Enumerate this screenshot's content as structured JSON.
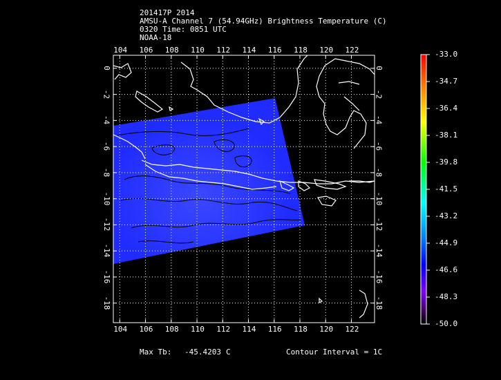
{
  "header": {
    "line1": "201417P 2014",
    "line2": "AMSU-A Channel 7 (54.94GHz) Brightness Temperature (C)",
    "line3": "0320 Time: 0851 UTC",
    "line4": "NOAA-18"
  },
  "map": {
    "lon_ticks": [
      "104",
      "106",
      "108",
      "110",
      "112",
      "114",
      "116",
      "118",
      "120",
      "122"
    ],
    "lat_ticks": [
      "0",
      "-2",
      "-4",
      "-6",
      "-8",
      "-10",
      "-12",
      "-14",
      "-16",
      "-18"
    ],
    "lon_range": [
      103.5,
      123.8
    ],
    "lat_range": [
      1.0,
      -19.5
    ],
    "swath_color": "#1f2bff",
    "swath_highlight_color": "#3a48ff",
    "coastline_color": "#ffffff",
    "contour_color": "#000000",
    "grid_color": "#ffffff"
  },
  "colorbar": {
    "labels": [
      "-33.0",
      "-34.7",
      "-36.4",
      "-38.1",
      "-39.8",
      "-41.5",
      "-43.2",
      "-44.9",
      "-46.6",
      "-48.3",
      "-50.0"
    ],
    "max": -33.0,
    "min": -50.0,
    "colors": [
      "#ff0000",
      "#ff8000",
      "#ffff00",
      "#00ff00",
      "#00ffff",
      "#0080ff",
      "#0000ff",
      "#8000ff",
      "#400060",
      "#000000"
    ]
  },
  "footer": {
    "max_label": "Max Tb:",
    "max_value": "-45.4203",
    "max_unit": "C",
    "contour": "Contour Interval = 1C"
  }
}
